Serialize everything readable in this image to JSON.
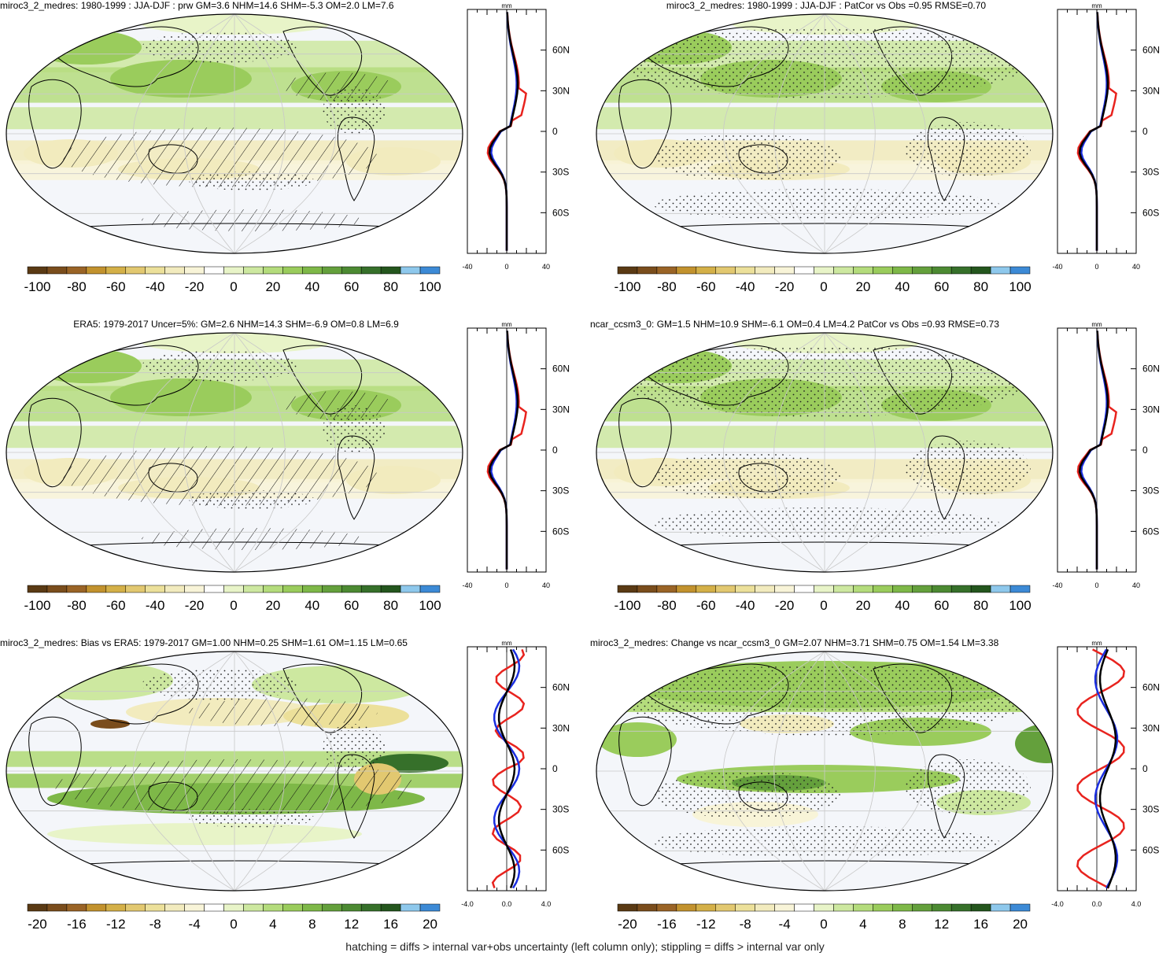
{
  "panels": [
    {
      "title": "miroc3_2_medres: 1980-1999 : JJA-DJF : prw GM=3.6 NHM=14.6 SHM=-5.3 OM=2.0 LM=7.6",
      "title_align": "left",
      "hatch": true,
      "stipple": true,
      "profile_ticks": [
        "-40",
        "0",
        "40"
      ],
      "colorbar_labels": [
        "-100",
        "-80",
        "-60",
        "-40",
        "-20",
        "0",
        "20",
        "40",
        "60",
        "80",
        "100"
      ]
    },
    {
      "title": "miroc3_2_medres: 1980-1999 : JJA-DJF : PatCor vs Obs =0.95 RMSE=0.70",
      "title_align": "center",
      "hatch": false,
      "stipple": true,
      "profile_ticks": [
        "-40",
        "0",
        "40"
      ],
      "colorbar_labels": [
        "-100",
        "-80",
        "-60",
        "-40",
        "-20",
        "0",
        "20",
        "40",
        "60",
        "80",
        "100"
      ]
    },
    {
      "title": "ERA5: 1979-2017 Uncer=5%: GM=2.6 NHM=14.3 SHM=-6.9 OM=0.8 LM=6.9",
      "title_align": "center",
      "hatch": true,
      "stipple": true,
      "profile_ticks": [
        "-40",
        "0",
        "40"
      ],
      "colorbar_labels": [
        "-100",
        "-80",
        "-60",
        "-40",
        "-20",
        "0",
        "20",
        "40",
        "60",
        "80",
        "100"
      ]
    },
    {
      "title": "ncar_ccsm3_0: GM=1.5 NHM=10.9 SHM=-6.1 OM=0.4 LM=4.2 PatCor vs Obs =0.93 RMSE=0.73",
      "title_align": "left",
      "hatch": false,
      "stipple": true,
      "profile_ticks": [
        "-40",
        "0",
        "40"
      ],
      "colorbar_labels": [
        "-100",
        "-80",
        "-60",
        "-40",
        "-20",
        "0",
        "20",
        "40",
        "60",
        "80",
        "100"
      ]
    },
    {
      "title": "miroc3_2_medres: Bias vs ERA5: 1979-2017 GM=1.00 NHM=0.25 SHM=1.61 OM=1.15 LM=0.65",
      "title_align": "left",
      "hatch": true,
      "stipple": true,
      "profile_ticks": [
        "-4.0",
        "0.0",
        "4.0"
      ],
      "colorbar_labels": [
        "-20",
        "-16",
        "-12",
        "-8",
        "-4",
        "0",
        "4",
        "8",
        "12",
        "16",
        "20"
      ]
    },
    {
      "title": "miroc3_2_medres: Change vs ncar_ccsm3_0 GM=2.07 NHM=3.71 SHM=0.75 OM=1.54 LM=3.38",
      "title_align": "left",
      "hatch": false,
      "stipple": true,
      "profile_ticks": [
        "-4.0",
        "0.0",
        "4.0"
      ],
      "colorbar_labels": [
        "-20",
        "-16",
        "-12",
        "-8",
        "-4",
        "0",
        "4",
        "8",
        "12",
        "16",
        "20"
      ]
    }
  ],
  "profile_unit": "mm",
  "lat_labels": [
    "60N",
    "30N",
    "0",
    "30S",
    "60S"
  ],
  "colorbar_colors": [
    "#5a3a14",
    "#7a4d1c",
    "#9a6426",
    "#c2922e",
    "#d4b048",
    "#e2c870",
    "#ece09a",
    "#f2ebbe",
    "#f8f4d8",
    "#ffffff",
    "#e8f4c8",
    "#cde8a0",
    "#b4dc7c",
    "#9acc5c",
    "#7eb848",
    "#64a03c",
    "#4c8a32",
    "#36702a",
    "#24561e",
    "#8ec8ec",
    "#3c8ad6"
  ],
  "colors": {
    "land_outline": "#000000",
    "profile_red": "#e8231e",
    "profile_blue": "#1a2ee0",
    "profile_black": "#000000",
    "grid": "#c8c8c8"
  },
  "footer": "hatching = diffs > internal var+obs uncertainty (left column only); stippling = diffs > internal var only"
}
